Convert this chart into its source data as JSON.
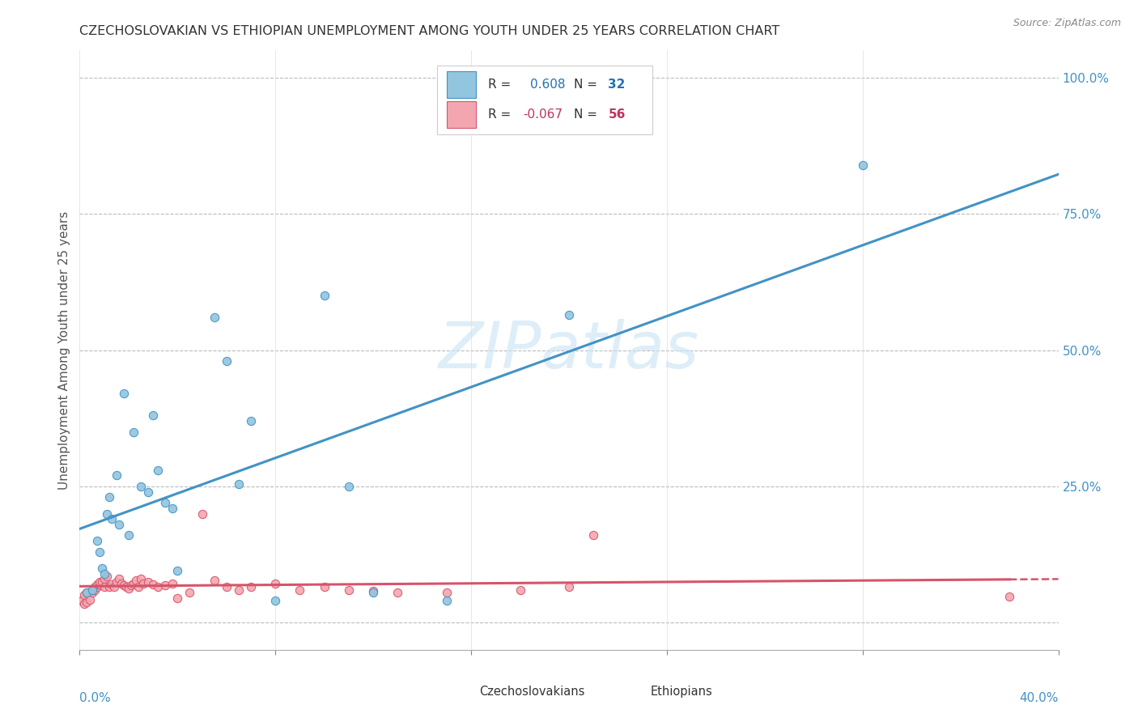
{
  "title": "CZECHOSLOVAKIAN VS ETHIOPIAN UNEMPLOYMENT AMONG YOUTH UNDER 25 YEARS CORRELATION CHART",
  "source": "Source: ZipAtlas.com",
  "ylabel": "Unemployment Among Youth under 25 years",
  "xlim": [
    0.0,
    0.4
  ],
  "ylim": [
    -0.05,
    1.05
  ],
  "yticks": [
    0.0,
    0.25,
    0.5,
    0.75,
    1.0
  ],
  "ytick_labels": [
    "",
    "25.0%",
    "50.0%",
    "75.0%",
    "100.0%"
  ],
  "xtick_vals": [
    0.0,
    0.08,
    0.16,
    0.24,
    0.32,
    0.4
  ],
  "czech_color": "#92c5de",
  "czech_edge_color": "#4292c6",
  "ethiop_color": "#f4a6b0",
  "ethiop_edge_color": "#d6546a",
  "czech_line_color": "#4292c6",
  "ethiop_line_color": "#d6546a",
  "watermark": "ZIPatlas",
  "czech_points_x": [
    0.003,
    0.005,
    0.007,
    0.008,
    0.009,
    0.01,
    0.011,
    0.012,
    0.013,
    0.015,
    0.016,
    0.018,
    0.02,
    0.022,
    0.025,
    0.028,
    0.03,
    0.032,
    0.035,
    0.038,
    0.04,
    0.055,
    0.06,
    0.065,
    0.07,
    0.08,
    0.1,
    0.12,
    0.15,
    0.2,
    0.11,
    0.32
  ],
  "czech_points_y": [
    0.055,
    0.06,
    0.15,
    0.13,
    0.1,
    0.09,
    0.2,
    0.23,
    0.19,
    0.27,
    0.18,
    0.42,
    0.16,
    0.35,
    0.25,
    0.24,
    0.38,
    0.28,
    0.22,
    0.21,
    0.095,
    0.56,
    0.48,
    0.255,
    0.37,
    0.04,
    0.6,
    0.055,
    0.04,
    0.565,
    0.25,
    0.84
  ],
  "ethiop_points_x": [
    0.001,
    0.002,
    0.002,
    0.003,
    0.003,
    0.004,
    0.005,
    0.005,
    0.006,
    0.006,
    0.007,
    0.007,
    0.008,
    0.008,
    0.009,
    0.01,
    0.01,
    0.011,
    0.012,
    0.013,
    0.014,
    0.015,
    0.016,
    0.017,
    0.018,
    0.019,
    0.02,
    0.021,
    0.022,
    0.023,
    0.024,
    0.025,
    0.026,
    0.028,
    0.03,
    0.032,
    0.035,
    0.038,
    0.04,
    0.045,
    0.05,
    0.055,
    0.06,
    0.065,
    0.07,
    0.08,
    0.09,
    0.1,
    0.11,
    0.12,
    0.13,
    0.15,
    0.18,
    0.2,
    0.21,
    0.38
  ],
  "ethiop_points_y": [
    0.04,
    0.035,
    0.05,
    0.038,
    0.055,
    0.042,
    0.055,
    0.06,
    0.06,
    0.065,
    0.065,
    0.07,
    0.07,
    0.075,
    0.075,
    0.08,
    0.065,
    0.085,
    0.065,
    0.07,
    0.065,
    0.075,
    0.08,
    0.072,
    0.068,
    0.065,
    0.062,
    0.068,
    0.072,
    0.078,
    0.065,
    0.08,
    0.072,
    0.075,
    0.07,
    0.065,
    0.068,
    0.072,
    0.045,
    0.055,
    0.2,
    0.078,
    0.065,
    0.06,
    0.065,
    0.072,
    0.06,
    0.065,
    0.06,
    0.058,
    0.055,
    0.055,
    0.06,
    0.065,
    0.16,
    0.048
  ]
}
